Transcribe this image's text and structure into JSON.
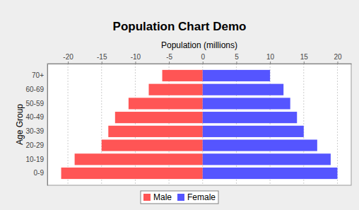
{
  "chart_data": {
    "type": "bar",
    "title": "Population Chart Demo",
    "orientation": "horizontal",
    "stacked": true,
    "grid": true,
    "legend": "bottom",
    "xlabel": "Population (millions)",
    "ylabel": "Age Group",
    "categories": [
      "70+",
      "60-69",
      "50-59",
      "40-49",
      "30-39",
      "20-29",
      "10-19",
      "0-9"
    ],
    "series": [
      {
        "name": "Male",
        "color": "#ff5555",
        "values": [
          -6,
          -8,
          -11,
          -13,
          -14,
          -15,
          -19,
          -21
        ]
      },
      {
        "name": "Female",
        "color": "#5555ff",
        "values": [
          10,
          12,
          13,
          14,
          15,
          17,
          19,
          20
        ]
      }
    ],
    "xlim": [
      -23.05,
      22.05
    ],
    "xticks": [
      -20,
      -15,
      -10,
      -5,
      0,
      5,
      10,
      15,
      20
    ]
  }
}
